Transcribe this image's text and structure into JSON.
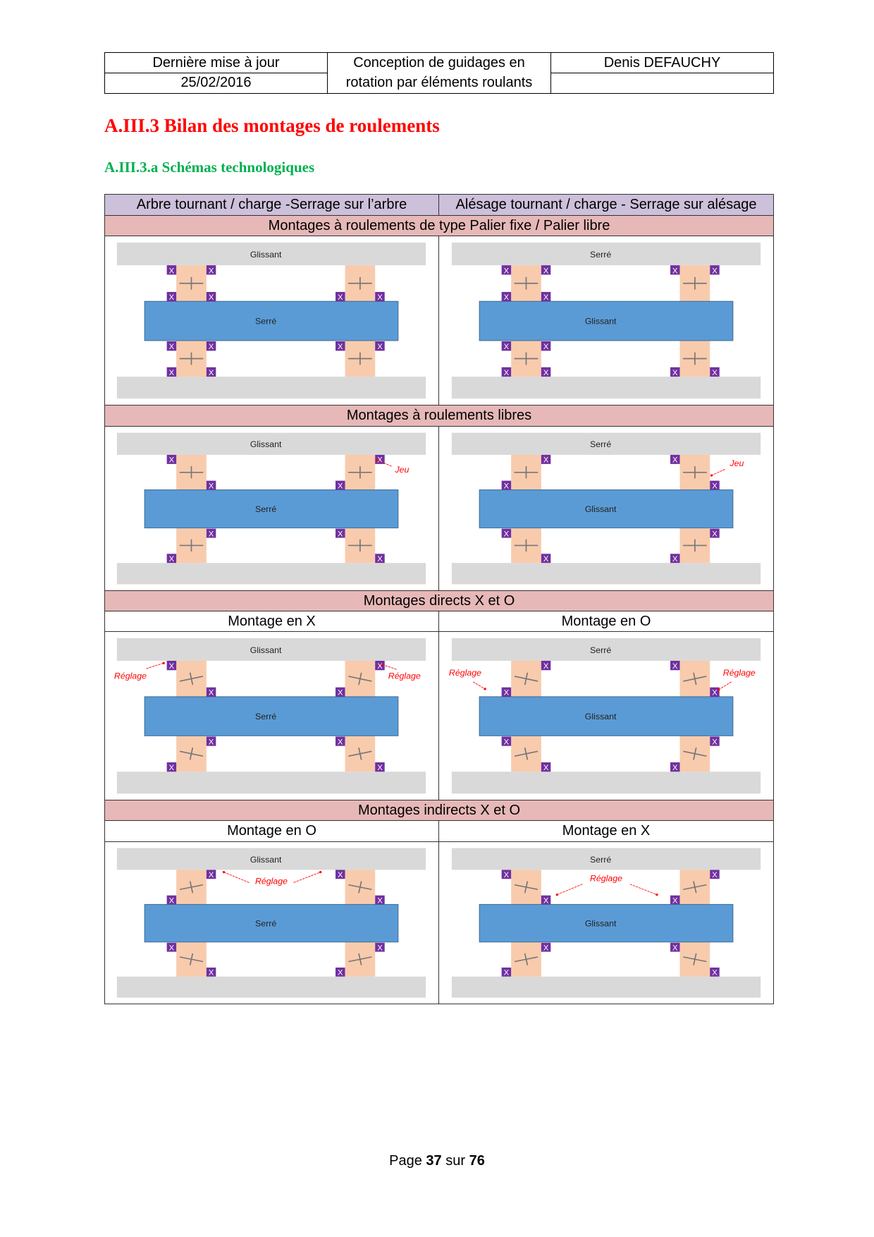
{
  "header": {
    "last_update_label": "Dernière mise à jour",
    "date": "25/02/2016",
    "doc_title_line1": "Conception de guidages en",
    "doc_title_line2": "rotation par éléments roulants",
    "author": "Denis DEFAUCHY"
  },
  "title": "A.III.3 Bilan des montages de roulements",
  "subtitle": "A.III.3.a Schémas technologiques",
  "table": {
    "col_left": "Arbre tournant / charge -Serrage sur l’arbre",
    "col_right": "Alésage tournant / charge - Serrage sur alésage",
    "sections": [
      {
        "title": "Montages à roulements de type Palier fixe / Palier libre",
        "sub_left": "",
        "sub_right": "",
        "left": {
          "housing": "Glissant",
          "shaft": "Serré",
          "mode": "fixe-libre-arbre",
          "note": ""
        },
        "right": {
          "housing": "Serré",
          "shaft": "Glissant",
          "mode": "fixe-libre-alesage",
          "note": ""
        }
      },
      {
        "title": "Montages à roulements libres",
        "sub_left": "",
        "sub_right": "",
        "left": {
          "housing": "Glissant",
          "shaft": "Serré",
          "mode": "libres-arbre",
          "note": "Jeu"
        },
        "right": {
          "housing": "Serré",
          "shaft": "Glissant",
          "mode": "libres-alesage",
          "note": "Jeu"
        }
      },
      {
        "title": "Montages directs X et O",
        "sub_left": "Montage en X",
        "sub_right": "Montage en O",
        "left": {
          "housing": "Glissant",
          "shaft": "Serré",
          "mode": "direct-x",
          "note": "Réglage"
        },
        "right": {
          "housing": "Serré",
          "shaft": "Glissant",
          "mode": "direct-o",
          "note": "Réglage"
        }
      },
      {
        "title": "Montages indirects X et O",
        "sub_left": "Montage en O",
        "sub_right": "Montage en X",
        "left": {
          "housing": "Glissant",
          "shaft": "Serré",
          "mode": "indirect-o",
          "note": "Réglage"
        },
        "right": {
          "housing": "Serré",
          "shaft": "Glissant",
          "mode": "indirect-x",
          "note": "Réglage"
        }
      }
    ]
  },
  "stop_symbol": "X",
  "colors": {
    "housing": "#d9d9d9",
    "bearing": "#f8cbad",
    "shaft": "#5b9bd5",
    "stop": "#7030a0",
    "note": "#ff0000",
    "lavender": "#ccc0da",
    "pink": "#e6b8b7"
  },
  "footer": {
    "prefix": "Page",
    "page": "37",
    "mid": "sur",
    "total": "76"
  }
}
